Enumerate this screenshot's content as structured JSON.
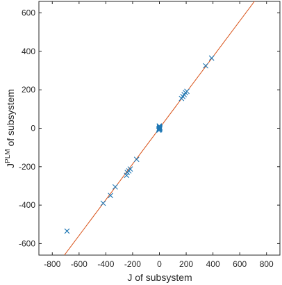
{
  "chart_data": {
    "type": "scatter",
    "title": "",
    "xlabel": "J of subsystem",
    "ylabel": {
      "base": "J",
      "superscript": "PLM",
      "rest": " of subsystem"
    },
    "xlim": [
      -900,
      900
    ],
    "ylim": [
      -660,
      660
    ],
    "xticks": [
      -800,
      -600,
      -400,
      -200,
      0,
      200,
      400,
      600,
      800
    ],
    "yticks": [
      -600,
      -400,
      -200,
      0,
      200,
      400,
      600
    ],
    "grid": false,
    "legend": "none",
    "marker": "x",
    "colors": {
      "points": "#1f77b4",
      "fit_line": "#d95319",
      "axes": "#262626"
    },
    "fit_line": {
      "slope": 0.93,
      "intercept": 0
    },
    "points": [
      {
        "x": -690,
        "y": -535
      },
      {
        "x": -420,
        "y": -390
      },
      {
        "x": -365,
        "y": -350
      },
      {
        "x": -330,
        "y": -305
      },
      {
        "x": -245,
        "y": -245
      },
      {
        "x": -240,
        "y": -230
      },
      {
        "x": -228,
        "y": -222
      },
      {
        "x": -218,
        "y": -212
      },
      {
        "x": -170,
        "y": -162
      },
      {
        "x": -5,
        "y": -10
      },
      {
        "x": -3,
        "y": -5
      },
      {
        "x": -2,
        "y": -2
      },
      {
        "x": 0,
        "y": 0
      },
      {
        "x": 1,
        "y": 3
      },
      {
        "x": 2,
        "y": 6
      },
      {
        "x": 0,
        "y": 9
      },
      {
        "x": -1,
        "y": 12
      },
      {
        "x": 3,
        "y": -3
      },
      {
        "x": 4,
        "y": 2
      },
      {
        "x": 1,
        "y": -8
      },
      {
        "x": 165,
        "y": 155
      },
      {
        "x": 175,
        "y": 165
      },
      {
        "x": 185,
        "y": 175
      },
      {
        "x": 195,
        "y": 185
      },
      {
        "x": 205,
        "y": 192
      },
      {
        "x": 345,
        "y": 325
      },
      {
        "x": 390,
        "y": 365
      }
    ]
  }
}
